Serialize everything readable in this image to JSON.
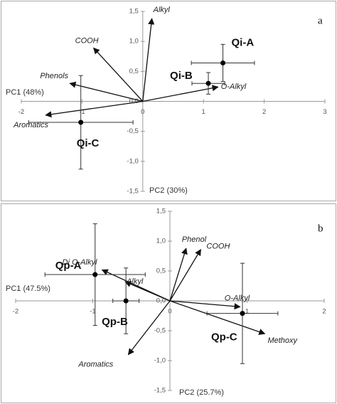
{
  "chart_data": [
    {
      "type": "biplot",
      "panel": "a",
      "xlabel": "PC1 (48%)",
      "ylabel": "PC2 (30%)",
      "xlim": [
        -2,
        3
      ],
      "xticks": [
        -2,
        -1,
        0,
        1,
        2,
        3
      ],
      "ylim": [
        -1.5,
        1.5
      ],
      "yticks": [
        {
          "value": 1.5,
          "label": "1,5"
        },
        {
          "value": 1,
          "label": "1,0"
        },
        {
          "value": 0.5,
          "label": "0,5"
        },
        {
          "value": 0,
          "label": "0,0"
        },
        {
          "value": -0.5,
          "label": "-0,5"
        },
        {
          "value": -1,
          "label": "-1,0"
        },
        {
          "value": -1.5,
          "label": "-1,5"
        }
      ],
      "points": [
        {
          "name": "Qi-A",
          "x": 1.32,
          "y": 0.64,
          "xerr": 0.52,
          "yerr": 0.31
        },
        {
          "name": "Qi-B",
          "x": 1.08,
          "y": 0.3,
          "xerr": 0.27,
          "yerr": 0.18
        },
        {
          "name": "Qi-C",
          "x": -1.02,
          "y": -0.35,
          "xerr": 0.86,
          "yerr": 0.78
        }
      ],
      "arrows": [
        {
          "name": "Alkyl",
          "x": 0.15,
          "y": 1.38
        },
        {
          "name": "COOH",
          "x": -0.81,
          "y": 0.89
        },
        {
          "name": "Phenols",
          "x": -1.2,
          "y": 0.3
        },
        {
          "name": "O-Alkyl",
          "x": 1.24,
          "y": 0.24
        },
        {
          "name": "Aromatics",
          "x": -1.6,
          "y": -0.23
        }
      ]
    },
    {
      "type": "biplot",
      "panel": "b",
      "xlabel": "PC1 (47.5%)",
      "ylabel": "PC2 (25.7%)",
      "xlim": [
        -2,
        2
      ],
      "xticks": [
        -2,
        -1,
        0,
        1,
        2
      ],
      "ylim": [
        -1.5,
        1.5
      ],
      "yticks": [
        {
          "value": 1.5,
          "label": "1,5"
        },
        {
          "value": 1,
          "label": "1,0"
        },
        {
          "value": 0.5,
          "label": "0,5"
        },
        {
          "value": 0,
          "label": "0,0"
        },
        {
          "value": -0.5,
          "label": "-0,5"
        },
        {
          "value": -1,
          "label": "-1,0"
        },
        {
          "value": -1.5,
          "label": "-1,5"
        }
      ],
      "points": [
        {
          "name": "Qp-A",
          "x": -0.97,
          "y": 0.44,
          "xerr": 0.65,
          "yerr": 0.85
        },
        {
          "name": "Qp-B",
          "x": -0.57,
          "y": 0.0,
          "xerr": 0.17,
          "yerr": 0.55
        },
        {
          "name": "Qp-C",
          "x": 0.94,
          "y": -0.21,
          "xerr": 0.46,
          "yerr": 0.84
        }
      ],
      "arrows": [
        {
          "name": "Phenol",
          "x": 0.21,
          "y": 0.88
        },
        {
          "name": "COOH",
          "x": 0.4,
          "y": 0.86
        },
        {
          "name": "Di O-Alkyl",
          "x": -0.88,
          "y": 0.52
        },
        {
          "name": "Alkyl",
          "x": -0.58,
          "y": 0.32
        },
        {
          "name": "O-Alkyl",
          "x": 0.91,
          "y": -0.1
        },
        {
          "name": "Methoxy",
          "x": 1.23,
          "y": -0.55
        },
        {
          "name": "Aromatics",
          "x": -0.54,
          "y": -0.9
        }
      ]
    }
  ]
}
